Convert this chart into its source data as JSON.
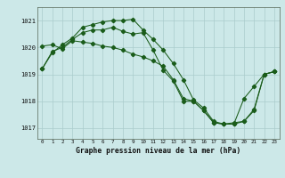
{
  "title": "Graphe pression niveau de la mer (hPa)",
  "background_color": "#cce8e8",
  "grid_color": "#aacccc",
  "line_color": "#1a5c1a",
  "x_min": -0.5,
  "x_max": 23.5,
  "y_min": 1016.6,
  "y_max": 1021.5,
  "y_ticks": [
    1017,
    1018,
    1019,
    1020,
    1021
  ],
  "x_ticks": [
    0,
    1,
    2,
    3,
    4,
    5,
    6,
    7,
    8,
    9,
    10,
    11,
    12,
    13,
    14,
    15,
    16,
    17,
    18,
    19,
    20,
    21,
    22,
    23
  ],
  "s1": [
    1019.2,
    1019.8,
    1020.1,
    1020.35,
    1020.75,
    1020.85,
    1020.95,
    1021.0,
    1021.0,
    1021.05,
    1020.65,
    1020.3,
    1019.9,
    1019.4,
    1018.8,
    1018.05,
    1017.75,
    1017.25,
    1017.15,
    1017.2,
    1017.25,
    1017.7,
    1019.0,
    1019.1
  ],
  "s2": [
    1020.05,
    1020.1,
    1019.95,
    1020.25,
    1020.2,
    1020.15,
    1020.05,
    1020.0,
    1019.9,
    1019.75,
    1019.65,
    1019.5,
    1019.3,
    1018.8,
    1018.1,
    1018.0,
    1017.65,
    1017.2,
    1017.15,
    1017.15,
    1018.1,
    1018.55,
    1019.0,
    1019.1
  ],
  "s3": [
    1019.2,
    1019.85,
    1020.0,
    1020.3,
    1020.55,
    1020.65,
    1020.65,
    1020.75,
    1020.6,
    1020.5,
    1020.55,
    1019.9,
    1019.15,
    1018.75,
    1018.0,
    1018.0,
    1017.65,
    1017.2,
    1017.15,
    1017.15,
    1017.25,
    1017.65,
    1019.0,
    1019.1
  ]
}
